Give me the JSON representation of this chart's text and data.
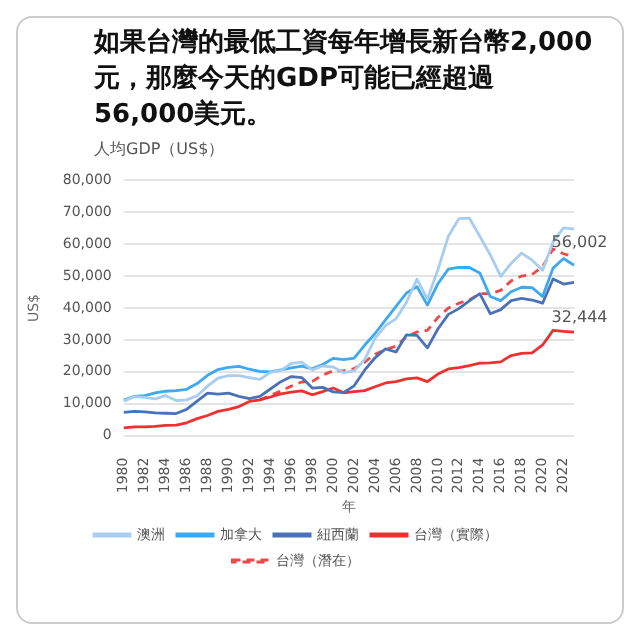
{
  "chart_data": {
    "type": "line",
    "title": "如果台灣的最低工資每年增長新台幣2,000元，那麼今天的GDP可能已經超過56,000美元。",
    "subtitle": "人均GDP（US$）",
    "xlabel": "年",
    "ylabel": "US$",
    "categories": [
      "1980",
      null,
      "1982",
      null,
      "1984",
      null,
      "1986",
      null,
      "1988",
      null,
      "1990",
      null,
      "1992",
      null,
      "1994",
      null,
      "1996",
      null,
      "1998",
      null,
      "2000",
      null,
      "2002",
      null,
      "2004",
      null,
      "2006",
      null,
      "2008",
      null,
      "2010",
      null,
      "2012",
      null,
      "2014",
      null,
      "2016",
      null,
      "2018",
      null,
      "2020",
      null,
      "2022",
      null
    ],
    "series": [
      {
        "name": "澳洲",
        "color": "#a9cdf0",
        "values": [
          10800,
          12200,
          12000,
          11500,
          12500,
          11000,
          11200,
          12500,
          15500,
          18000,
          18800,
          18800,
          18200,
          17600,
          19800,
          20400,
          22600,
          23000,
          20600,
          21800,
          21500,
          19700,
          20300,
          23800,
          30500,
          34500,
          36600,
          41800,
          49000,
          42800,
          52000,
          62500,
          68000,
          68200,
          62500,
          56700,
          49900,
          54000,
          57200,
          55000,
          51800,
          60700,
          65100,
          64700
        ]
      },
      {
        "name": "加拿大",
        "color": "#3ea8f0",
        "values": [
          11100,
          12300,
          12500,
          13400,
          13900,
          14100,
          14500,
          16300,
          18900,
          20700,
          21400,
          21700,
          20800,
          20100,
          20000,
          20600,
          21200,
          21800,
          20900,
          22300,
          24200,
          23800,
          24300,
          28300,
          32000,
          36300,
          40500,
          44700,
          46700,
          40900,
          47600,
          52200,
          52700,
          52700,
          51000,
          43600,
          42300,
          45100,
          46500,
          46400,
          43600,
          52500,
          55500,
          53400
        ]
      },
      {
        "name": "紐西蘭",
        "color": "#4a72b8",
        "values": [
          7300,
          7600,
          7400,
          7100,
          7000,
          6900,
          8200,
          10800,
          13300,
          13000,
          13300,
          12300,
          11600,
          12300,
          14600,
          16900,
          18500,
          18200,
          14900,
          15100,
          13700,
          13500,
          15600,
          20500,
          24400,
          27200,
          26200,
          31600,
          31400,
          27500,
          33400,
          38000,
          39800,
          42200,
          44500,
          38200,
          39500,
          42300,
          43000,
          42500,
          41500,
          49100,
          47500,
          48000
        ]
      },
      {
        "name": "台灣（實際）",
        "color": "#f03030",
        "values": [
          2400,
          2700,
          2700,
          2900,
          3200,
          3300,
          4000,
          5300,
          6300,
          7600,
          8200,
          9100,
          10700,
          11200,
          12100,
          13100,
          13600,
          14000,
          12800,
          13800,
          14900,
          13400,
          13800,
          14100,
          15300,
          16500,
          16900,
          17800,
          18100,
          16900,
          19300,
          20900,
          21300,
          21900,
          22700,
          22800,
          23100,
          25100,
          25800,
          25900,
          28400,
          33000,
          32700,
          32444
        ]
      },
      {
        "name": "台灣（潛在）",
        "color": "#f04848",
        "line_style": "dashed",
        "values": [
          null,
          null,
          null,
          null,
          null,
          null,
          null,
          null,
          null,
          null,
          null,
          null,
          null,
          11200,
          12600,
          14000,
          15500,
          16800,
          17000,
          19000,
          20300,
          20300,
          21000,
          23000,
          25500,
          27000,
          28000,
          31000,
          32500,
          33000,
          37000,
          40000,
          41500,
          42500,
          44500,
          44500,
          45500,
          48500,
          50000,
          50500,
          53000,
          58500,
          57000,
          56002
        ]
      }
    ],
    "annotations": [
      {
        "text": "56,002",
        "x": "2022",
        "y": 56002
      },
      {
        "text": "32,444",
        "x": "2022",
        "y": 32444
      }
    ],
    "ylim": [
      0,
      80000
    ],
    "yticks": [
      0,
      {
        "value": 10000,
        "label": "10,000"
      },
      {
        "value": 20000,
        "label": "20,000"
      },
      {
        "value": 30000,
        "label": "30,000"
      },
      {
        "value": 40000,
        "label": "40,000"
      },
      {
        "value": 50000,
        "label": "50,000"
      },
      {
        "value": 60000,
        "label": "60,000"
      },
      {
        "value": 70000,
        "label": "70,000"
      },
      {
        "value": 80000,
        "label": "80,000"
      }
    ],
    "grid": "y",
    "legend": "bottom",
    "marker": "none"
  }
}
